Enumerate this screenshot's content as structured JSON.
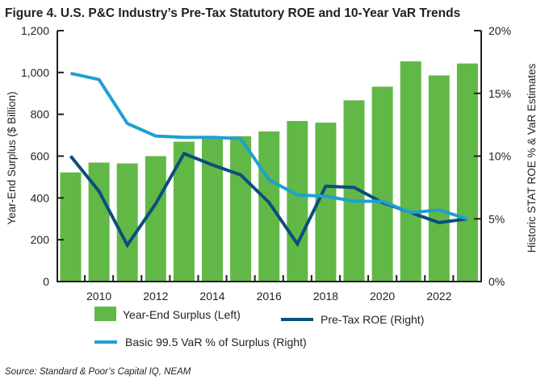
{
  "chart_data": {
    "type": "bar",
    "title": "Figure 4. U.S. P&C Industry’s Pre-Tax Statutory ROE and 10-Year VaR Trends",
    "x": [
      2009,
      2010,
      2011,
      2012,
      2013,
      2014,
      2015,
      2016,
      2017,
      2018,
      2019,
      2020,
      2021,
      2022,
      2023
    ],
    "xtick_labels": [
      "2010",
      "2012",
      "2014",
      "2016",
      "2018",
      "2020",
      "2022"
    ],
    "xtick_values": [
      2010,
      2012,
      2014,
      2016,
      2018,
      2020,
      2022
    ],
    "ylabel": "Year-End Surplus ($ Billion)",
    "ylim": [
      0,
      1200
    ],
    "ytick_labels": [
      "0",
      "200",
      "400",
      "600",
      "800",
      "1,000",
      "1,200"
    ],
    "y2label": "Historic STAT ROE % & VaR Estimates",
    "y2lim": [
      0,
      20
    ],
    "y2tick_labels": [
      "0%",
      "5%",
      "10%",
      "15%",
      "20%"
    ],
    "series": [
      {
        "name": "Year-End Surplus (Left)",
        "type": "bar",
        "axis": "left",
        "color": "#62b846",
        "values": [
          522,
          569,
          565,
          600,
          669,
          684,
          695,
          718,
          768,
          760,
          867,
          932,
          1053,
          986,
          1043
        ]
      },
      {
        "name": "Pre-Tax ROE (Right)",
        "type": "line",
        "axis": "right",
        "color": "#0b4f7a",
        "values": [
          10.0,
          7.2,
          2.9,
          6.2,
          10.2,
          9.3,
          8.5,
          6.3,
          3.0,
          7.6,
          7.5,
          6.3,
          5.5,
          4.7,
          5.0
        ]
      },
      {
        "name": "Basic 99.5 VaR % of Surplus (Right)",
        "type": "line",
        "axis": "right",
        "color": "#1ea0d2",
        "values": [
          16.6,
          16.1,
          12.6,
          11.6,
          11.5,
          11.5,
          11.4,
          8.1,
          6.9,
          6.8,
          6.4,
          6.4,
          5.5,
          5.7,
          5.0
        ]
      }
    ],
    "legend": "bottom",
    "grid": false,
    "source": "Source: Standard & Poor’s Capital IQ, NEAM"
  }
}
